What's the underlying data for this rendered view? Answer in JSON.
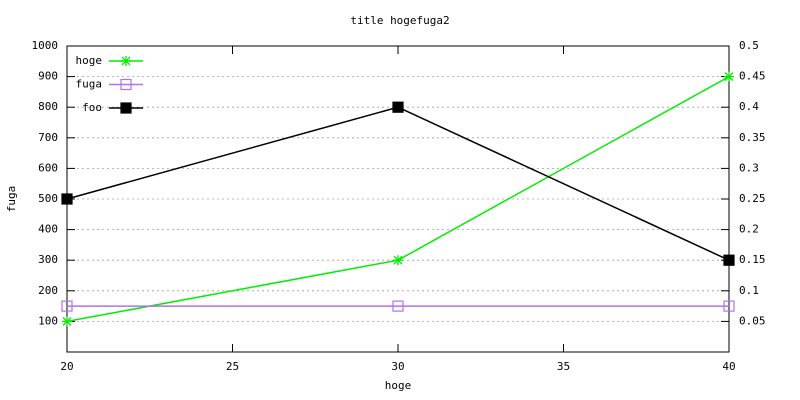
{
  "chart_data": {
    "type": "line",
    "title": "title hogefuga2",
    "xlabel": "hoge",
    "ylabel": "fuga",
    "x": [
      20,
      30,
      40
    ],
    "series": [
      {
        "name": "hoge",
        "color": "#00ee00",
        "marker": "star",
        "values": [
          100,
          300,
          900
        ]
      },
      {
        "name": "fuga",
        "color": "#b370e8",
        "marker": "open-square",
        "values": [
          150,
          150,
          150
        ]
      },
      {
        "name": "foo",
        "color": "#000000",
        "marker": "filled-square",
        "values": [
          500,
          800,
          300
        ]
      }
    ],
    "xlim": [
      20,
      40
    ],
    "xticks": [
      20,
      25,
      30,
      35,
      40
    ],
    "ylim": [
      0,
      1000
    ],
    "yticks": [
      100,
      200,
      300,
      400,
      500,
      600,
      700,
      800,
      900,
      1000
    ],
    "y2lim": [
      0,
      0.5
    ],
    "y2ticks": [
      0.05,
      0.1,
      0.15,
      0.2,
      0.25,
      0.3,
      0.35,
      0.4,
      0.45,
      0.5
    ],
    "grid": true,
    "legend": "top-left"
  }
}
